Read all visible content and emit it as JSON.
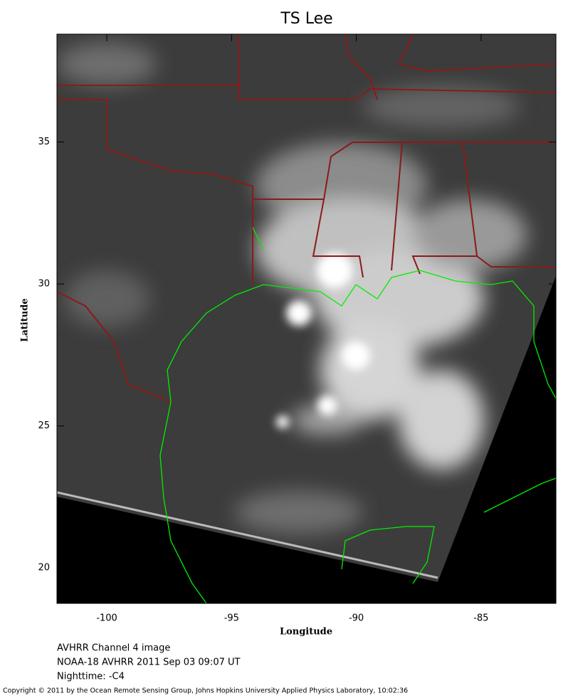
{
  "map": {
    "title": "TS Lee",
    "x_label": "Longitude",
    "y_label": "Latitude",
    "xlim": [
      -102,
      -82
    ],
    "ylim": [
      18.75,
      38.8
    ],
    "xticks": [
      -100,
      -95,
      -90,
      -85
    ],
    "yticks": [
      20,
      25,
      30,
      35
    ],
    "caption": [
      "AVHRR Channel 4 image",
      "NOAA-18 AVHRR 2011 Sep 03 09:07 UT",
      "Nighttime: -C4"
    ],
    "copyright": "Copyright © 2011 by the Ocean Remote Sensing Group, Johns Hopkins University Applied Physics Laboratory, 10:02:36"
  }
}
